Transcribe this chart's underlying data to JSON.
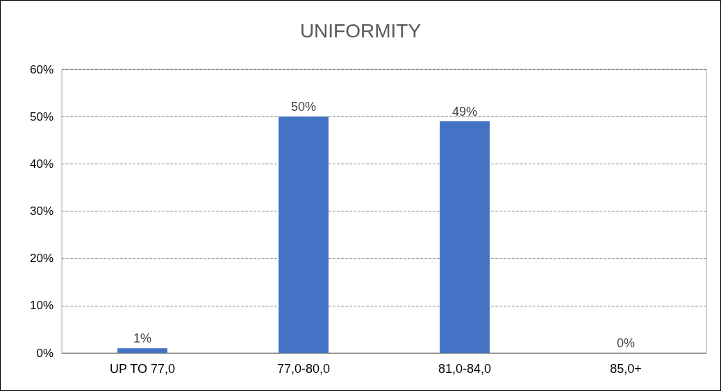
{
  "chart_data": {
    "type": "bar",
    "title": "UNIFORMITY",
    "categories": [
      "UP TO 77,0",
      "77,0-80,0",
      "81,0-84,0",
      "85,0+"
    ],
    "values": [
      1,
      50,
      49,
      0
    ],
    "color": "#4472c4",
    "value_labels": [
      "1%",
      "50%",
      "49%",
      "0%"
    ],
    "ylim": [
      0,
      60
    ],
    "yticks": [
      {
        "value": 0,
        "label": "0%"
      },
      {
        "value": 10,
        "label": "10%"
      },
      {
        "value": 20,
        "label": "20%"
      },
      {
        "value": 30,
        "label": "30%"
      },
      {
        "value": 40,
        "label": "40%"
      },
      {
        "value": 50,
        "label": "50%"
      },
      {
        "value": 60,
        "label": "60%"
      }
    ],
    "grid": "y"
  }
}
